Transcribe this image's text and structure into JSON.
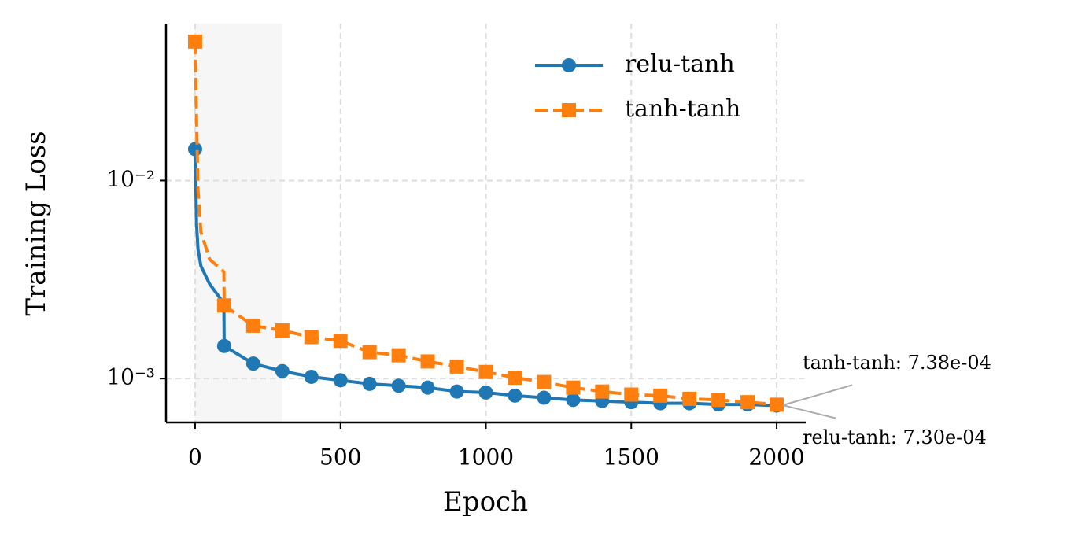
{
  "chart_data": {
    "type": "line",
    "xlabel": "Epoch",
    "ylabel": "Training Loss",
    "xlim": [
      -100,
      2100
    ],
    "xticks": [
      0,
      500,
      1000,
      1500,
      2000
    ],
    "ylim": [
      0.0006,
      0.062
    ],
    "log_y": true,
    "yticks": [
      {
        "value": 0.01,
        "label": "10⁻²"
      },
      {
        "value": 0.001,
        "label": "10⁻³"
      }
    ],
    "grid": true,
    "legend": "upper right",
    "highlight_span": [
      0,
      300
    ],
    "series": [
      {
        "name": "relu-tanh",
        "color": "#1f77b4",
        "linestyle": "solid",
        "marker": "circle",
        "x": [
          0,
          5,
          10,
          20,
          50,
          99,
          100,
          200,
          300,
          400,
          500,
          600,
          700,
          800,
          900,
          1000,
          1100,
          1200,
          1300,
          1400,
          1500,
          1600,
          1700,
          1800,
          1900,
          2000
        ],
        "values": [
          0.0144,
          0.006,
          0.0045,
          0.0037,
          0.003,
          0.0024,
          0.00146,
          0.00119,
          0.00109,
          0.00102,
          0.00098,
          0.00094,
          0.00092,
          0.0009,
          0.00086,
          0.00085,
          0.00082,
          0.0008,
          0.00078,
          0.00077,
          0.00076,
          0.00075,
          0.00075,
          0.00074,
          0.00074,
          0.00073
        ]
      },
      {
        "name": "tanh-tanh",
        "color": "#ff7f0e",
        "linestyle": "dashed",
        "marker": "square",
        "x": [
          0,
          5,
          10,
          20,
          50,
          99,
          100,
          200,
          300,
          400,
          500,
          600,
          700,
          800,
          900,
          1000,
          1100,
          1200,
          1300,
          1400,
          1500,
          1600,
          1700,
          1800,
          1900,
          2000
        ],
        "values": [
          0.0503,
          0.02,
          0.009,
          0.0055,
          0.004,
          0.00346,
          0.00234,
          0.00185,
          0.00175,
          0.00162,
          0.00155,
          0.00136,
          0.00131,
          0.00122,
          0.00115,
          0.00108,
          0.00101,
          0.00096,
          0.0009,
          0.00086,
          0.00083,
          0.00082,
          0.00079,
          0.00078,
          0.00076,
          0.000738
        ]
      }
    ],
    "annotations": [
      {
        "text": "tanh-tanh: 7.38e-04",
        "x": 2000,
        "y": 0.000738
      },
      {
        "text": "relu-tanh: 7.30e-04",
        "x": 2000,
        "y": 0.00073
      }
    ]
  }
}
